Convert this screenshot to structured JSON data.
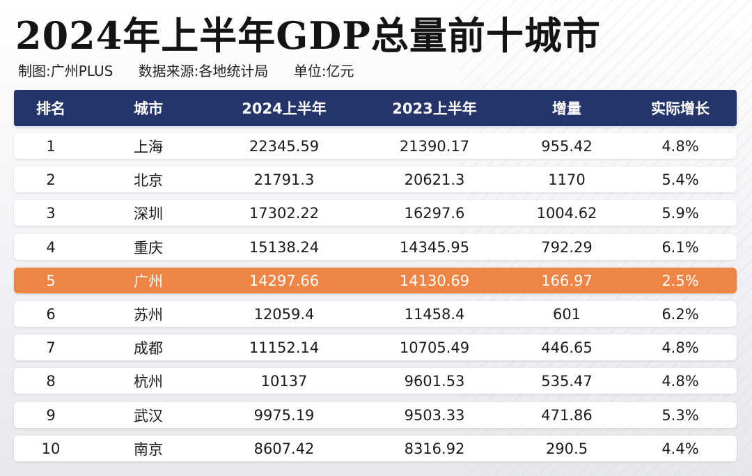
{
  "title": "2024年上半年GDP总量前十城市",
  "subtitle": {
    "maker": "制图:广州PLUS",
    "source": "数据来源:各地统计局",
    "unit": "单位:亿元"
  },
  "colors": {
    "header_bg": "#25356a",
    "highlight_bg": "#ef8447",
    "row_bg": "#ffffff"
  },
  "chart_data": {
    "type": "table",
    "title": "2024年上半年GDP总量前十城市",
    "columns": [
      "排名",
      "城市",
      "2024上半年",
      "2023上半年",
      "增量",
      "实际增长"
    ],
    "rows": [
      [
        "1",
        "上海",
        "22345.59",
        "21390.17",
        "955.42",
        "4.8%"
      ],
      [
        "2",
        "北京",
        "21791.3",
        "20621.3",
        "1170",
        "5.4%"
      ],
      [
        "3",
        "深圳",
        "17302.22",
        "16297.6",
        "1004.62",
        "5.9%"
      ],
      [
        "4",
        "重庆",
        "15138.24",
        "14345.95",
        "792.29",
        "6.1%"
      ],
      [
        "5",
        "广州",
        "14297.66",
        "14130.69",
        "166.97",
        "2.5%"
      ],
      [
        "6",
        "苏州",
        "12059.4",
        "11458.4",
        "601",
        "6.2%"
      ],
      [
        "7",
        "成都",
        "11152.14",
        "10705.49",
        "446.65",
        "4.8%"
      ],
      [
        "8",
        "杭州",
        "10137",
        "9601.53",
        "535.47",
        "4.8%"
      ],
      [
        "9",
        "武汉",
        "9975.19",
        "9503.33",
        "471.86",
        "5.3%"
      ],
      [
        "10",
        "南京",
        "8607.42",
        "8316.92",
        "290.5",
        "4.4%"
      ]
    ],
    "highlight_row": 4
  }
}
